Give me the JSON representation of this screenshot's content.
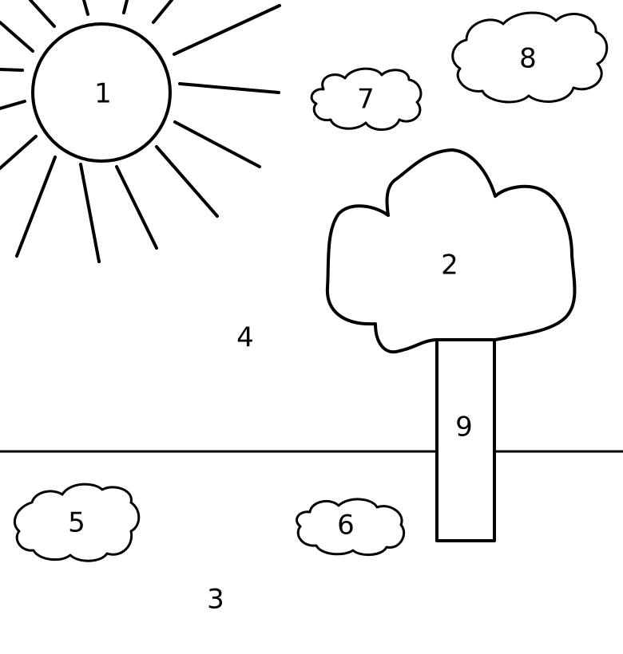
{
  "colors": {
    "background": "#ffffff",
    "line": "#000000"
  },
  "regions": [
    {
      "label": "1",
      "shape": "sun"
    },
    {
      "label": "2",
      "shape": "tree-crown"
    },
    {
      "label": "3",
      "shape": "ground"
    },
    {
      "label": "4",
      "shape": "sky"
    },
    {
      "label": "5",
      "shape": "bush-left"
    },
    {
      "label": "6",
      "shape": "bush-middle"
    },
    {
      "label": "7",
      "shape": "cloud-small"
    },
    {
      "label": "8",
      "shape": "cloud-large"
    },
    {
      "label": "9",
      "shape": "tree-trunk"
    }
  ]
}
